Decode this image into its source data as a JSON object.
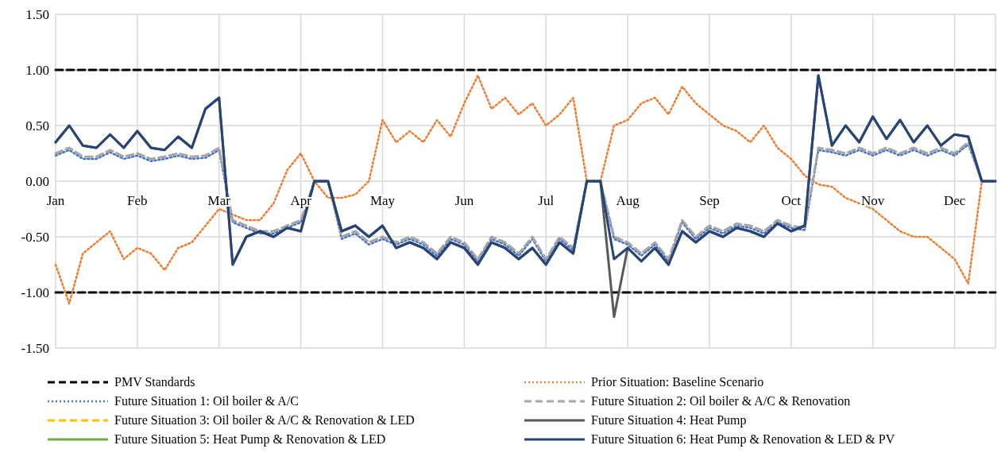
{
  "chart_data": {
    "type": "line",
    "categories": [
      "Jan",
      null,
      null,
      null,
      null,
      null,
      "Feb",
      null,
      null,
      null,
      null,
      null,
      "Mar",
      null,
      null,
      null,
      null,
      null,
      "Apr",
      null,
      null,
      null,
      null,
      null,
      "May",
      null,
      null,
      null,
      null,
      null,
      "Jun",
      null,
      null,
      null,
      null,
      null,
      "Jul",
      null,
      null,
      null,
      null,
      null,
      "Aug",
      null,
      null,
      null,
      null,
      null,
      "Sep",
      null,
      null,
      null,
      null,
      null,
      "Oct",
      null,
      null,
      null,
      null,
      null,
      "Nov",
      null,
      null,
      null,
      null,
      null,
      "Dec",
      null,
      null,
      null
    ],
    "ylim": [
      -1.5,
      1.5
    ],
    "yticks": [
      {
        "value": -1.5,
        "label": "-1.50"
      },
      {
        "value": -1,
        "label": "-1.00"
      },
      {
        "value": -0.5,
        "label": "-0.50"
      },
      {
        "value": 0,
        "label": "0.00"
      },
      {
        "value": 0.5,
        "label": "0.50"
      },
      {
        "value": 1,
        "label": "1.00"
      },
      {
        "value": 1.5,
        "label": "1.50"
      }
    ],
    "grid": true,
    "legend": "bottom",
    "marker": "none",
    "series": [
      {
        "name": "PMV Standards",
        "color": "#000000",
        "line_style": "dashed",
        "values": [
          1,
          1,
          1,
          1,
          1,
          1,
          1,
          1,
          1,
          1,
          1,
          1,
          1,
          1,
          1,
          1,
          1,
          1,
          1,
          1,
          1,
          1,
          1,
          1,
          1,
          1,
          1,
          1,
          1,
          1,
          1,
          1,
          1,
          1,
          1,
          1,
          1,
          1,
          1,
          1,
          1,
          1,
          1,
          1,
          1,
          1,
          1,
          1,
          1,
          1,
          1,
          1,
          1,
          1,
          1,
          1,
          1,
          1,
          1,
          1,
          1,
          1,
          1,
          1,
          1,
          1,
          1,
          1,
          1,
          1
        ]
      },
      {
        "color": "#000000",
        "line_style": "dashed",
        "values": [
          -1,
          -1,
          -1,
          -1,
          -1,
          -1,
          -1,
          -1,
          -1,
          -1,
          -1,
          -1,
          -1,
          -1,
          -1,
          -1,
          -1,
          -1,
          -1,
          -1,
          -1,
          -1,
          -1,
          -1,
          -1,
          -1,
          -1,
          -1,
          -1,
          -1,
          -1,
          -1,
          -1,
          -1,
          -1,
          -1,
          -1,
          -1,
          -1,
          -1,
          -1,
          -1,
          -1,
          -1,
          -1,
          -1,
          -1,
          -1,
          -1,
          -1,
          -1,
          -1,
          -1,
          -1,
          -1,
          -1,
          -1,
          -1,
          -1,
          -1,
          -1,
          -1,
          -1,
          -1,
          -1,
          -1,
          -1,
          -1,
          -1,
          -1
        ]
      },
      {
        "name": "Prior Situation: Baseline Scenario",
        "color": "#ed7d31",
        "line_style": "dotted",
        "values": [
          -0.75,
          -1.1,
          -0.65,
          -0.55,
          -0.45,
          -0.7,
          -0.6,
          -0.65,
          -0.8,
          -0.6,
          -0.55,
          -0.4,
          -0.25,
          -0.3,
          -0.35,
          -0.35,
          -0.2,
          0.1,
          0.25,
          0,
          -0.15,
          -0.15,
          -0.12,
          0,
          0.55,
          0.35,
          0.45,
          0.35,
          0.55,
          0.4,
          0.7,
          0.95,
          0.65,
          0.75,
          0.6,
          0.7,
          0.5,
          0.6,
          0.75,
          0,
          0,
          0.5,
          0.55,
          0.7,
          0.75,
          0.6,
          0.85,
          0.7,
          0.6,
          0.5,
          0.45,
          0.35,
          0.5,
          0.3,
          0.2,
          0.05,
          -0.03,
          -0.05,
          -0.15,
          -0.2,
          -0.25,
          -0.35,
          -0.45,
          -0.5,
          -0.5,
          -0.6,
          -0.7,
          -0.92,
          0,
          null
        ]
      },
      {
        "name": "Future Situation 1: Oil boiler & A/C",
        "color": "#4472c4",
        "line_style": "dotted",
        "values": [
          0.23,
          0.28,
          0.2,
          0.2,
          0.26,
          0.2,
          0.23,
          0.18,
          0.2,
          0.23,
          0.2,
          0.21,
          0.28,
          -0.37,
          -0.42,
          -0.47,
          -0.47,
          -0.42,
          -0.37,
          0,
          0,
          -0.52,
          -0.47,
          -0.57,
          -0.52,
          -0.57,
          -0.52,
          -0.57,
          -0.67,
          -0.52,
          -0.57,
          -0.72,
          -0.52,
          -0.57,
          -0.67,
          -0.52,
          -0.72,
          -0.52,
          -0.62,
          0,
          0,
          -0.52,
          -0.57,
          -0.67,
          -0.57,
          -0.72,
          -0.37,
          -0.52,
          -0.42,
          -0.47,
          -0.4,
          -0.42,
          -0.47,
          -0.37,
          -0.42,
          -0.44,
          0.28,
          0.26,
          0.23,
          0.28,
          0.23,
          0.28,
          0.23,
          0.28,
          0.23,
          0.28,
          0.23,
          0.33,
          0,
          0
        ]
      },
      {
        "name": "Future Situation 2: Oil boiler & A/C & Renovation",
        "color": "#a5a5a5",
        "line_style": "dashed",
        "values": [
          0.25,
          0.3,
          0.22,
          0.22,
          0.28,
          0.22,
          0.25,
          0.2,
          0.22,
          0.25,
          0.22,
          0.23,
          0.3,
          -0.35,
          -0.4,
          -0.45,
          -0.45,
          -0.4,
          -0.35,
          0,
          0,
          -0.5,
          -0.45,
          -0.55,
          -0.5,
          -0.55,
          -0.5,
          -0.55,
          -0.65,
          -0.5,
          -0.55,
          -0.7,
          -0.5,
          -0.55,
          -0.65,
          -0.5,
          -0.7,
          -0.5,
          -0.6,
          0,
          0,
          -0.5,
          -0.55,
          -0.65,
          -0.55,
          -0.7,
          -0.35,
          -0.5,
          -0.4,
          -0.45,
          -0.38,
          -0.4,
          -0.45,
          -0.35,
          -0.4,
          -0.42,
          0.3,
          0.28,
          0.25,
          0.3,
          0.25,
          0.3,
          0.25,
          0.3,
          0.25,
          0.3,
          0.25,
          0.35,
          0,
          0
        ]
      },
      {
        "name": "Future Situation 3: Oil boiler & A/C & Renovation & LED",
        "color": "#ffc000",
        "line_style": "dashed",
        "values": [
          null,
          null,
          null,
          null,
          null,
          null,
          null,
          null,
          null,
          null,
          null,
          null,
          null,
          null,
          null,
          null,
          null,
          null,
          null,
          null,
          null,
          null,
          null,
          null,
          null,
          null,
          null,
          null,
          null,
          null,
          null,
          null,
          null,
          null,
          null,
          null,
          null,
          null,
          null,
          null,
          null,
          null,
          null,
          null,
          null,
          null,
          null,
          null,
          null,
          null,
          null,
          null,
          null,
          null,
          null,
          null,
          null,
          null,
          null,
          null,
          null,
          null,
          null,
          null,
          null,
          null,
          null,
          null,
          null,
          null
        ]
      },
      {
        "name": "Future Situation 4: Heat Pump",
        "color": "#595959",
        "line_style": "solid",
        "values": [
          0.35,
          0.5,
          0.32,
          0.3,
          0.42,
          0.3,
          0.45,
          0.3,
          0.28,
          0.4,
          0.3,
          0.65,
          0.75,
          -0.75,
          -0.5,
          -0.45,
          -0.5,
          -0.42,
          -0.45,
          0,
          0,
          -0.45,
          -0.4,
          -0.5,
          -0.4,
          -0.6,
          -0.55,
          -0.6,
          -0.7,
          -0.55,
          -0.6,
          -0.75,
          -0.55,
          -0.6,
          -0.7,
          -0.6,
          -0.75,
          -0.55,
          -0.65,
          0,
          0,
          -1.22,
          -0.6,
          -0.72,
          -0.6,
          -0.75,
          -0.45,
          -0.55,
          -0.45,
          -0.5,
          -0.42,
          -0.45,
          -0.5,
          -0.38,
          -0.45,
          -0.4,
          0.95,
          0.32,
          0.5,
          0.35,
          0.58,
          0.38,
          0.55,
          0.35,
          0.5,
          0.32,
          0.42,
          0.4,
          0,
          0
        ]
      },
      {
        "name": "Future Situation 5: Heat Pump & Renovation & LED",
        "color": "#70ad47",
        "line_style": "solid",
        "values": [
          null,
          null,
          null,
          null,
          null,
          null,
          null,
          null,
          null,
          null,
          null,
          null,
          null,
          null,
          null,
          null,
          null,
          null,
          null,
          null,
          null,
          null,
          null,
          null,
          null,
          null,
          null,
          null,
          null,
          null,
          null,
          null,
          null,
          null,
          null,
          null,
          null,
          null,
          null,
          null,
          null,
          null,
          null,
          null,
          null,
          null,
          null,
          null,
          null,
          null,
          null,
          null,
          null,
          null,
          null,
          null,
          null,
          null,
          null,
          null,
          null,
          null,
          null,
          null,
          null,
          null,
          null,
          null,
          null,
          null
        ]
      },
      {
        "name": "Future Situation 6: Heat Pump & Renovation & LED & PV",
        "color": "#264478",
        "line_style": "solid",
        "values": [
          0.35,
          0.5,
          0.32,
          0.3,
          0.42,
          0.3,
          0.45,
          0.3,
          0.28,
          0.4,
          0.3,
          0.65,
          0.75,
          -0.75,
          -0.5,
          -0.45,
          -0.5,
          -0.42,
          -0.45,
          0,
          0,
          -0.45,
          -0.4,
          -0.5,
          -0.4,
          -0.6,
          -0.55,
          -0.6,
          -0.7,
          -0.55,
          -0.6,
          -0.75,
          -0.55,
          -0.6,
          -0.7,
          -0.6,
          -0.75,
          -0.55,
          -0.65,
          0,
          0,
          -0.7,
          -0.6,
          -0.72,
          -0.6,
          -0.75,
          -0.45,
          -0.55,
          -0.45,
          -0.5,
          -0.42,
          -0.45,
          -0.5,
          -0.38,
          -0.45,
          -0.4,
          0.95,
          0.32,
          0.5,
          0.35,
          0.58,
          0.38,
          0.55,
          0.35,
          0.5,
          0.32,
          0.42,
          0.4,
          0,
          0
        ]
      }
    ]
  }
}
